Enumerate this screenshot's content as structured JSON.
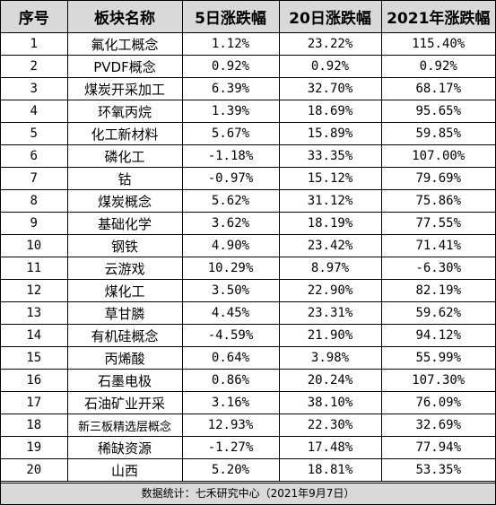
{
  "table": {
    "headers": {
      "rank": "序号",
      "sector": "板块名称",
      "chg_5d": "5日涨跌幅",
      "chg_20d": "20日涨跌幅",
      "chg_2021": "2021年涨跌幅"
    },
    "rows": [
      {
        "rank": "1",
        "sector": "氟化工概念",
        "chg_5d": "1.12%",
        "chg_20d": "23.22%",
        "chg_2021": "115.40%"
      },
      {
        "rank": "2",
        "sector": "PVDF概念",
        "chg_5d": "0.92%",
        "chg_20d": "0.92%",
        "chg_2021": "0.92%"
      },
      {
        "rank": "3",
        "sector": "煤炭开采加工",
        "chg_5d": "6.39%",
        "chg_20d": "32.70%",
        "chg_2021": "68.17%"
      },
      {
        "rank": "4",
        "sector": "环氧丙烷",
        "chg_5d": "1.39%",
        "chg_20d": "18.69%",
        "chg_2021": "95.65%"
      },
      {
        "rank": "5",
        "sector": "化工新材料",
        "chg_5d": "5.67%",
        "chg_20d": "15.89%",
        "chg_2021": "59.85%"
      },
      {
        "rank": "6",
        "sector": "磷化工",
        "chg_5d": "-1.18%",
        "chg_20d": "33.35%",
        "chg_2021": "107.00%"
      },
      {
        "rank": "7",
        "sector": "钴",
        "chg_5d": "-0.97%",
        "chg_20d": "15.12%",
        "chg_2021": "79.69%"
      },
      {
        "rank": "8",
        "sector": "煤炭概念",
        "chg_5d": "5.62%",
        "chg_20d": "31.12%",
        "chg_2021": "75.86%"
      },
      {
        "rank": "9",
        "sector": "基础化学",
        "chg_5d": "3.62%",
        "chg_20d": "18.19%",
        "chg_2021": "77.55%"
      },
      {
        "rank": "10",
        "sector": "钢铁",
        "chg_5d": "4.90%",
        "chg_20d": "23.42%",
        "chg_2021": "71.41%"
      },
      {
        "rank": "11",
        "sector": "云游戏",
        "chg_5d": "10.29%",
        "chg_20d": "8.97%",
        "chg_2021": "-6.30%"
      },
      {
        "rank": "12",
        "sector": "煤化工",
        "chg_5d": "3.50%",
        "chg_20d": "22.90%",
        "chg_2021": "82.19%"
      },
      {
        "rank": "13",
        "sector": "草甘膦",
        "chg_5d": "4.45%",
        "chg_20d": "23.31%",
        "chg_2021": "59.62%"
      },
      {
        "rank": "14",
        "sector": "有机硅概念",
        "chg_5d": "-4.59%",
        "chg_20d": "21.90%",
        "chg_2021": "94.12%"
      },
      {
        "rank": "15",
        "sector": "丙烯酸",
        "chg_5d": "0.64%",
        "chg_20d": "3.98%",
        "chg_2021": "55.99%"
      },
      {
        "rank": "16",
        "sector": "石墨电极",
        "chg_5d": "0.86%",
        "chg_20d": "20.24%",
        "chg_2021": "107.30%"
      },
      {
        "rank": "17",
        "sector": "石油矿业开采",
        "chg_5d": "3.16%",
        "chg_20d": "38.10%",
        "chg_2021": "76.09%"
      },
      {
        "rank": "18",
        "sector": "新三板精选层概念",
        "chg_5d": "12.93%",
        "chg_20d": "22.30%",
        "chg_2021": "32.69%"
      },
      {
        "rank": "19",
        "sector": "稀缺资源",
        "chg_5d": "-1.27%",
        "chg_20d": "17.48%",
        "chg_2021": "77.94%"
      },
      {
        "rank": "20",
        "sector": "山西",
        "chg_5d": "5.20%",
        "chg_20d": "18.81%",
        "chg_2021": "53.35%"
      }
    ]
  },
  "footer": {
    "source": "数据统计：七禾研究中心（2021年9月7日）"
  },
  "colors": {
    "header_bg": "#d9d9d9",
    "footer_bg": "#d9d9d9",
    "grid": "#000000",
    "text": "#000000"
  }
}
